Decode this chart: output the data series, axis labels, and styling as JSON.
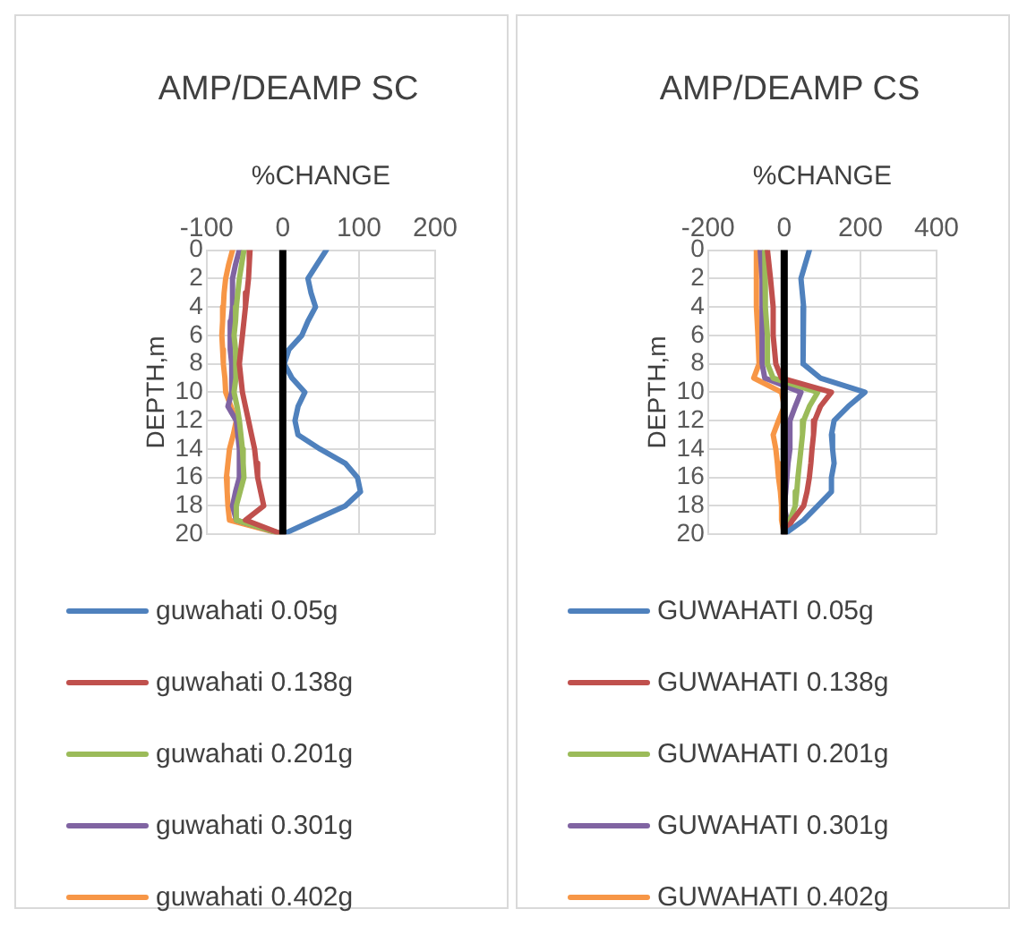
{
  "chart_data": [
    {
      "type": "line",
      "title": "AMP/DEAMP SC",
      "xlabel": "%CHANGE",
      "ylabel": "DEPTH,m",
      "orientation": "horizontal",
      "x": [
        0,
        1,
        2,
        3,
        4,
        5,
        6,
        7,
        8,
        9,
        10,
        11,
        12,
        13,
        14,
        15,
        16,
        17,
        18,
        19,
        20
      ],
      "xlim": [
        -100,
        200
      ],
      "xticks": [
        -100,
        0,
        100,
        200
      ],
      "ylim": [
        20,
        0
      ],
      "yticks": [
        0,
        2,
        4,
        6,
        8,
        10,
        12,
        14,
        16,
        18,
        20
      ],
      "grid": true,
      "legend": "bottom",
      "marker": "none",
      "ref_lines": [
        {
          "axis": "x",
          "value": 0,
          "color": "#000000"
        }
      ],
      "series": [
        {
          "name": "guwahati 0.05g",
          "color": "#4f81bd",
          "values": [
            57,
            45,
            33,
            37,
            43,
            33,
            25,
            8,
            2,
            12,
            29,
            20,
            16,
            20,
            49,
            82,
            98,
            102,
            82,
            41,
            0
          ]
        },
        {
          "name": "guwahati 0.138g",
          "color": "#c0504d",
          "values": [
            -43,
            -44,
            -45,
            -47,
            -49,
            -51,
            -53,
            -55,
            -57,
            -55,
            -53,
            -49,
            -45,
            -41,
            -37,
            -35,
            -33,
            -29,
            -25,
            -49,
            0
          ]
        },
        {
          "name": "guwahati 0.201g",
          "color": "#9bbb59",
          "values": [
            -51,
            -54,
            -57,
            -59,
            -61,
            -62,
            -64,
            -62,
            -61,
            -62,
            -64,
            -60,
            -57,
            -55,
            -53,
            -52,
            -51,
            -56,
            -61,
            -61,
            0
          ]
        },
        {
          "name": "guwahati 0.301g",
          "color": "#8064a2",
          "values": [
            -57,
            -62,
            -66,
            -66,
            -66,
            -68,
            -70,
            -68,
            -67,
            -67,
            -67,
            -72,
            -61,
            -59,
            -57,
            -57,
            -57,
            -62,
            -66,
            -61,
            0
          ]
        },
        {
          "name": "guwahati 0.402g",
          "color": "#f79646",
          "values": [
            -66,
            -71,
            -75,
            -77,
            -78,
            -79,
            -80,
            -79,
            -78,
            -76,
            -75,
            -68,
            -61,
            -65,
            -70,
            -72,
            -74,
            -73,
            -72,
            -70,
            0
          ]
        }
      ]
    },
    {
      "type": "line",
      "title": "AMP/DEAMP CS",
      "xlabel": "%CHANGE",
      "ylabel": "DEPTH,m",
      "orientation": "horizontal",
      "x": [
        0,
        2,
        4,
        6,
        8,
        9,
        10,
        11,
        12,
        13,
        14,
        15,
        16,
        17,
        18,
        19,
        20
      ],
      "xlim": [
        -200,
        400
      ],
      "xticks": [
        -200,
        0,
        200,
        400
      ],
      "ylim": [
        20,
        0
      ],
      "yticks": [
        0,
        2,
        4,
        6,
        8,
        10,
        12,
        14,
        16,
        18,
        20
      ],
      "grid": true,
      "legend": "bottom",
      "marker": "none",
      "ref_lines": [
        {
          "axis": "x",
          "value": 0,
          "color": "#000000"
        }
      ],
      "series": [
        {
          "name": "GUWAHATI 0.05g",
          "color": "#4f81bd",
          "values": [
            66,
            44,
            51,
            51,
            48,
            95,
            212,
            168,
            131,
            124,
            127,
            131,
            124,
            124,
            88,
            51,
            0
          ]
        },
        {
          "name": "GUWAHATI 0.138g",
          "color": "#c0504d",
          "values": [
            -44,
            -36,
            -29,
            -29,
            -22,
            -7,
            124,
            95,
            80,
            77,
            73,
            70,
            66,
            60,
            51,
            22,
            0
          ]
        },
        {
          "name": "GUWAHATI 0.201g",
          "color": "#9bbb59",
          "values": [
            -51,
            -51,
            -48,
            -44,
            -44,
            -29,
            88,
            66,
            51,
            48,
            44,
            40,
            36,
            33,
            29,
            15,
            0
          ]
        },
        {
          "name": "GUWAHATI 0.301g",
          "color": "#8064a2",
          "values": [
            -63,
            -58,
            -58,
            -58,
            -58,
            -51,
            44,
            29,
            15,
            15,
            15,
            10,
            7,
            4,
            0,
            7,
            0
          ]
        },
        {
          "name": "GUWAHATI 0.402g",
          "color": "#f79646",
          "values": [
            -73,
            -73,
            -73,
            -69,
            -66,
            -80,
            -7,
            0,
            -15,
            -29,
            -22,
            -18,
            -15,
            -10,
            -7,
            -7,
            0
          ]
        }
      ]
    }
  ]
}
